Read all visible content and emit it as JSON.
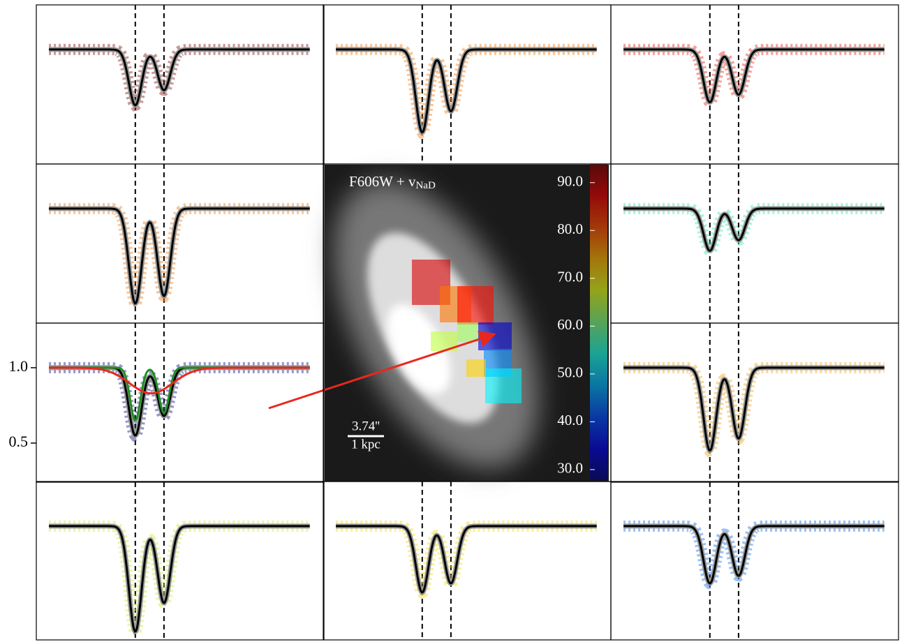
{
  "chart_data": {
    "type": "line",
    "ylim": [
      0.245,
      1.296
    ],
    "yticks": [
      {
        "value": 1,
        "label": "1.0"
      },
      {
        "value": 0.5,
        "label": "0.5"
      }
    ],
    "panels": [
      {
        "color": "#8b1a1a",
        "depths": [
          0.63,
          0.73
        ]
      },
      {
        "color": "#ff7f0e",
        "depths": [
          0.45,
          0.59
        ]
      },
      {
        "color": "#f03020",
        "depths": [
          0.65,
          0.7
        ]
      },
      {
        "color": "#f5821f",
        "depths": [
          0.37,
          0.42
        ]
      },
      {
        "color": "#3de8b0",
        "depths": [
          0.72,
          0.79
        ]
      },
      {
        "color": "#1a1a8c",
        "depths": [
          0.55,
          0.68
        ]
      },
      {
        "color": "#f5a623",
        "depths": [
          0.45,
          0.53
        ]
      },
      {
        "color": "#c8f03c",
        "depths": [
          0.3,
          0.49
        ]
      },
      {
        "color": "#f5dc14",
        "depths": [
          0.56,
          0.62
        ]
      },
      {
        "color": "#1f78e6",
        "depths": [
          0.62,
          0.67
        ]
      }
    ],
    "components": [
      {
        "color": "#1f8f1f",
        "depths": [
          0.65,
          0.7
        ]
      },
      {
        "color": "#e8281e",
        "depths": [
          0.83
        ]
      }
    ],
    "image": {
      "label": "F606W + v",
      "label_sub": "NaD",
      "scale_bar": "3.74''",
      "scale_unit": "1 kpc",
      "clim": [
        27.8,
        93.9
      ],
      "cticks": [
        {
          "value": 30,
          "label": "30.0"
        },
        {
          "value": 40,
          "label": "40.0"
        },
        {
          "value": 50,
          "label": "50.0"
        },
        {
          "value": 60,
          "label": "60.0"
        },
        {
          "value": 70,
          "label": "70.0"
        },
        {
          "value": 80,
          "label": "80.0"
        },
        {
          "value": 90,
          "label": "90.0"
        }
      ],
      "spaxels": [
        88,
        78,
        85,
        33,
        45,
        65,
        63,
        72,
        52
      ]
    }
  }
}
